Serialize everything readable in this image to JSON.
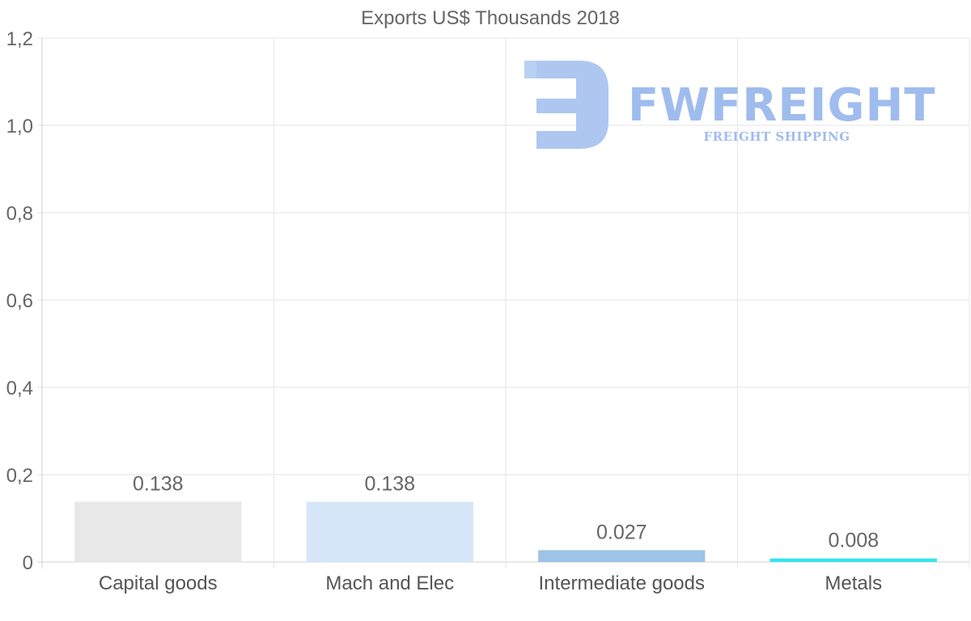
{
  "chart_data": {
    "type": "bar",
    "title": "Exports US$ Thousands 2018",
    "categories": [
      "Capital goods",
      "Mach and Elec",
      "Intermediate goods",
      "Metals"
    ],
    "values": [
      0.138,
      0.138,
      0.027,
      0.008
    ],
    "value_labels": [
      "0.138",
      "0.138",
      "0.027",
      "0.008"
    ],
    "bar_colors": [
      "#e8e8e8",
      "#d6e6f8",
      "#9dc3e6",
      "#33e6ec"
    ],
    "ylim": [
      0,
      1.2
    ],
    "yticks": [
      0,
      0.2,
      0.4,
      0.6,
      0.8,
      1.0,
      1.2
    ],
    "ytick_labels": [
      "0",
      "0,2",
      "0,4",
      "0,6",
      "0,8",
      "1,0",
      "1,2"
    ],
    "xlabel": "",
    "ylabel": "",
    "grid": true,
    "legend": "none"
  },
  "watermark": {
    "brand": "FWFREIGHT",
    "tagline": "FREIGHT SHIPPING",
    "color": "#9fbcee"
  }
}
